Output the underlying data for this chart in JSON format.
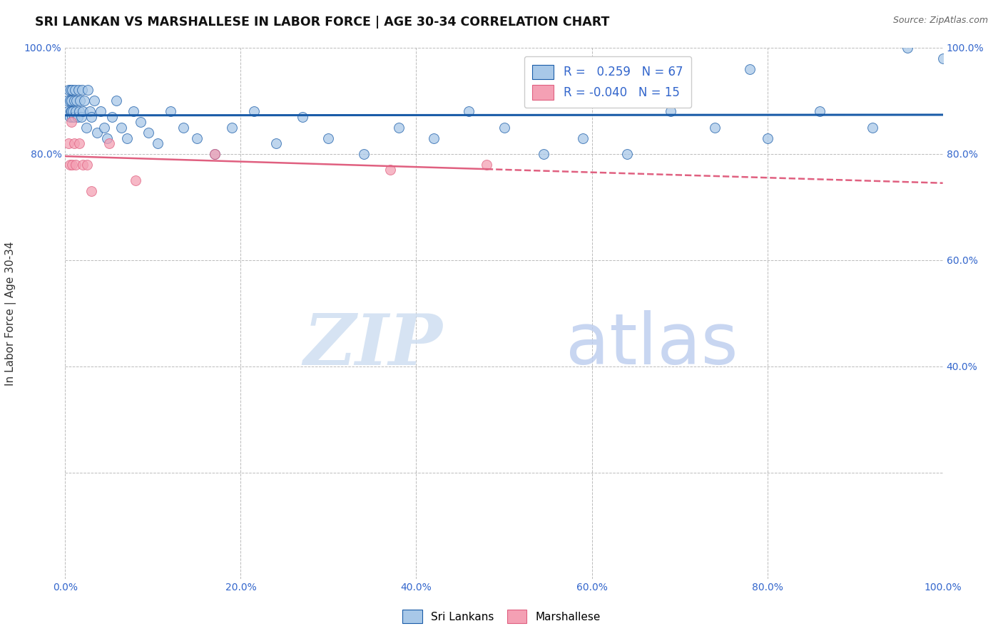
{
  "title": "SRI LANKAN VS MARSHALLESE IN LABOR FORCE | AGE 30-34 CORRELATION CHART",
  "source": "Source: ZipAtlas.com",
  "ylabel": "In Labor Force | Age 30-34",
  "xlim": [
    0.0,
    1.0
  ],
  "ylim": [
    0.0,
    1.0
  ],
  "r_sri": 0.259,
  "n_sri": 67,
  "r_marsh": -0.04,
  "n_marsh": 15,
  "sri_color": "#a8c8e8",
  "marsh_color": "#f4a0b4",
  "trend_sri_color": "#1a5ca8",
  "trend_marsh_color": "#e06080",
  "background_color": "#ffffff",
  "watermark_zip": "ZIP",
  "watermark_atlas": "atlas",
  "sri_x": [
    0.002,
    0.003,
    0.004,
    0.005,
    0.005,
    0.006,
    0.006,
    0.007,
    0.007,
    0.008,
    0.008,
    0.009,
    0.01,
    0.01,
    0.011,
    0.012,
    0.013,
    0.014,
    0.015,
    0.016,
    0.017,
    0.018,
    0.019,
    0.02,
    0.022,
    0.024,
    0.026,
    0.028,
    0.03,
    0.033,
    0.036,
    0.04,
    0.044,
    0.048,
    0.053,
    0.058,
    0.064,
    0.07,
    0.078,
    0.086,
    0.095,
    0.105,
    0.12,
    0.135,
    0.15,
    0.17,
    0.19,
    0.215,
    0.24,
    0.27,
    0.3,
    0.34,
    0.38,
    0.42,
    0.46,
    0.5,
    0.545,
    0.59,
    0.64,
    0.69,
    0.74,
    0.8,
    0.86,
    0.92,
    0.96,
    1.0,
    0.78
  ],
  "sri_y": [
    0.9,
    0.88,
    0.92,
    0.87,
    0.9,
    0.88,
    0.92,
    0.88,
    0.9,
    0.87,
    0.92,
    0.88,
    0.9,
    0.87,
    0.92,
    0.88,
    0.9,
    0.87,
    0.92,
    0.88,
    0.9,
    0.87,
    0.92,
    0.88,
    0.9,
    0.85,
    0.92,
    0.88,
    0.87,
    0.9,
    0.84,
    0.88,
    0.85,
    0.83,
    0.87,
    0.9,
    0.85,
    0.83,
    0.88,
    0.86,
    0.84,
    0.82,
    0.88,
    0.85,
    0.83,
    0.8,
    0.85,
    0.88,
    0.82,
    0.87,
    0.83,
    0.8,
    0.85,
    0.83,
    0.88,
    0.85,
    0.8,
    0.83,
    0.8,
    0.88,
    0.85,
    0.83,
    0.88,
    0.85,
    1.0,
    0.98,
    0.96
  ],
  "marsh_x": [
    0.004,
    0.005,
    0.007,
    0.008,
    0.01,
    0.012,
    0.016,
    0.02,
    0.025,
    0.03,
    0.05,
    0.08,
    0.17,
    0.37,
    0.48
  ],
  "marsh_y": [
    0.82,
    0.78,
    0.86,
    0.78,
    0.82,
    0.78,
    0.82,
    0.78,
    0.78,
    0.73,
    0.82,
    0.75,
    0.8,
    0.77,
    0.78
  ]
}
